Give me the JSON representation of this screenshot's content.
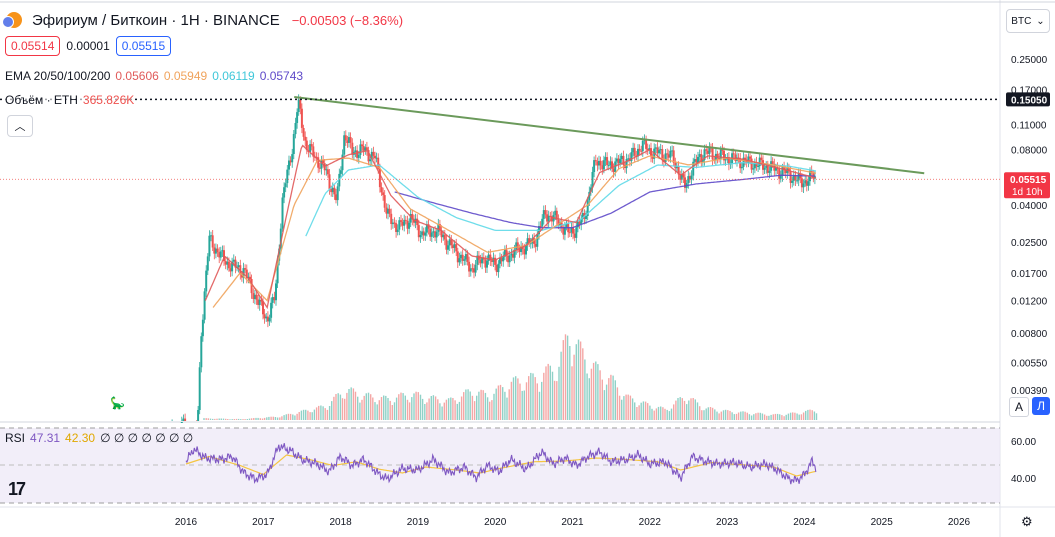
{
  "header": {
    "title": "Эфириум / Биткоин · 1H · BINANCE",
    "change": "−0.00503 (−8.36%)",
    "sell_price": "0.05514",
    "spread": "0.00001",
    "buy_price": "0.05515",
    "currency_label": "BTC"
  },
  "legend": {
    "ema_label": "EMA 20/50/100/200",
    "ema20": "0.05606",
    "ema50": "0.05949",
    "ema100": "0.06119",
    "ema200": "0.05743",
    "volume_label": "Объём · ETH",
    "volume_value": "365.826K",
    "rsi_label": "RSI",
    "rsi_value": "47.31",
    "rsi_ma": "42.30",
    "rsi_extra": "∅ ∅ ∅ ∅ ∅ ∅ ∅"
  },
  "colors": {
    "ema20": "#e05a5a",
    "ema50": "#f0a35c",
    "ema100": "#5fd9e8",
    "ema200": "#5e49c9",
    "trend": "#6b9a5b",
    "rsi_line": "#7e57c2",
    "rsi_ma": "#f5c542",
    "up": "#26a69a",
    "down": "#ef5350",
    "accent": "#2962ff"
  },
  "buttons": {
    "auto": "A",
    "log": "Л"
  },
  "chart_data": {
    "type": "candlestick",
    "scale": "log",
    "price_ticks": [
      "0.25000",
      "0.17000",
      "0.15050",
      "0.11000",
      "0.08000",
      "0.05515",
      "0.04000",
      "0.02500",
      "0.01700",
      "0.01200",
      "0.00800",
      "0.00550",
      "0.00390"
    ],
    "current_price": "0.05515",
    "current_countdown": "1d 10h",
    "dotted_level": "0.15050",
    "x_ticks": [
      "2016",
      "2017",
      "2018",
      "2019",
      "2020",
      "2021",
      "2022",
      "2023",
      "2024",
      "2025",
      "2026"
    ],
    "price_series": [
      [
        2015.82,
        0.0023
      ],
      [
        2015.95,
        0.0025
      ],
      [
        2016.1,
        0.0022
      ],
      [
        2016.15,
        0.0026
      ],
      [
        2016.2,
        0.0085
      ],
      [
        2016.3,
        0.026
      ],
      [
        2016.45,
        0.021
      ],
      [
        2016.55,
        0.019
      ],
      [
        2016.75,
        0.0175
      ],
      [
        2016.9,
        0.0125
      ],
      [
        2017.05,
        0.0095
      ],
      [
        2017.15,
        0.0125
      ],
      [
        2017.25,
        0.043
      ],
      [
        2017.38,
        0.085
      ],
      [
        2017.45,
        0.145
      ],
      [
        2017.55,
        0.085
      ],
      [
        2017.65,
        0.075
      ],
      [
        2017.8,
        0.062
      ],
      [
        2017.95,
        0.042
      ],
      [
        2018.05,
        0.098
      ],
      [
        2018.15,
        0.078
      ],
      [
        2018.3,
        0.08
      ],
      [
        2018.45,
        0.072
      ],
      [
        2018.6,
        0.035
      ],
      [
        2018.75,
        0.03
      ],
      [
        2018.9,
        0.034
      ],
      [
        2019.05,
        0.028
      ],
      [
        2019.25,
        0.029
      ],
      [
        2019.5,
        0.022
      ],
      [
        2019.7,
        0.018
      ],
      [
        2019.85,
        0.0205
      ],
      [
        2020.0,
        0.019
      ],
      [
        2020.15,
        0.021
      ],
      [
        2020.35,
        0.0235
      ],
      [
        2020.5,
        0.025
      ],
      [
        2020.65,
        0.036
      ],
      [
        2020.8,
        0.033
      ],
      [
        2020.95,
        0.028
      ],
      [
        2021.05,
        0.03
      ],
      [
        2021.15,
        0.034
      ],
      [
        2021.3,
        0.07
      ],
      [
        2021.45,
        0.066
      ],
      [
        2021.6,
        0.068
      ],
      [
        2021.75,
        0.072
      ],
      [
        2021.9,
        0.085
      ],
      [
        2022.0,
        0.079
      ],
      [
        2022.15,
        0.076
      ],
      [
        2022.3,
        0.073
      ],
      [
        2022.45,
        0.05
      ],
      [
        2022.55,
        0.064
      ],
      [
        2022.7,
        0.078
      ],
      [
        2022.85,
        0.075
      ],
      [
        2023.0,
        0.072
      ],
      [
        2023.15,
        0.07
      ],
      [
        2023.3,
        0.068
      ],
      [
        2023.5,
        0.065
      ],
      [
        2023.65,
        0.062
      ],
      [
        2023.8,
        0.059
      ],
      [
        2023.95,
        0.053
      ],
      [
        2024.05,
        0.055
      ],
      [
        2024.12,
        0.0575
      ],
      [
        2024.15,
        0.0552
      ]
    ],
    "ema20": [
      [
        2016.25,
        0.012
      ],
      [
        2016.5,
        0.021
      ],
      [
        2016.8,
        0.016
      ],
      [
        2017.05,
        0.011
      ],
      [
        2017.3,
        0.035
      ],
      [
        2017.5,
        0.085
      ],
      [
        2017.8,
        0.065
      ],
      [
        2018.1,
        0.075
      ],
      [
        2018.35,
        0.079
      ],
      [
        2018.65,
        0.045
      ],
      [
        2018.95,
        0.033
      ],
      [
        2019.3,
        0.029
      ],
      [
        2019.7,
        0.021
      ],
      [
        2020.0,
        0.02
      ],
      [
        2020.4,
        0.024
      ],
      [
        2020.75,
        0.034
      ],
      [
        2021.05,
        0.032
      ],
      [
        2021.35,
        0.06
      ],
      [
        2021.7,
        0.069
      ],
      [
        2022.0,
        0.08
      ],
      [
        2022.4,
        0.058
      ],
      [
        2022.75,
        0.074
      ],
      [
        2023.2,
        0.071
      ],
      [
        2023.7,
        0.063
      ],
      [
        2024.15,
        0.056
      ]
    ],
    "ema50": [
      [
        2016.35,
        0.011
      ],
      [
        2016.7,
        0.017
      ],
      [
        2017.05,
        0.012
      ],
      [
        2017.4,
        0.04
      ],
      [
        2017.7,
        0.07
      ],
      [
        2018.1,
        0.072
      ],
      [
        2018.5,
        0.064
      ],
      [
        2018.9,
        0.038
      ],
      [
        2019.4,
        0.029
      ],
      [
        2019.9,
        0.022
      ],
      [
        2020.4,
        0.024
      ],
      [
        2020.85,
        0.032
      ],
      [
        2021.2,
        0.04
      ],
      [
        2021.6,
        0.063
      ],
      [
        2022.0,
        0.074
      ],
      [
        2022.5,
        0.066
      ],
      [
        2023.0,
        0.072
      ],
      [
        2023.6,
        0.066
      ],
      [
        2024.15,
        0.0595
      ]
    ],
    "ema100": [
      [
        2017.55,
        0.027
      ],
      [
        2017.8,
        0.046
      ],
      [
        2018.1,
        0.062
      ],
      [
        2018.5,
        0.066
      ],
      [
        2019.0,
        0.044
      ],
      [
        2019.5,
        0.034
      ],
      [
        2020.0,
        0.029
      ],
      [
        2020.6,
        0.029
      ],
      [
        2021.1,
        0.033
      ],
      [
        2021.6,
        0.051
      ],
      [
        2022.1,
        0.066
      ],
      [
        2022.6,
        0.064
      ],
      [
        2023.2,
        0.068
      ],
      [
        2023.8,
        0.065
      ],
      [
        2024.15,
        0.0612
      ]
    ],
    "ema200": [
      [
        2018.7,
        0.047
      ],
      [
        2019.2,
        0.041
      ],
      [
        2019.7,
        0.036
      ],
      [
        2020.2,
        0.032
      ],
      [
        2020.6,
        0.03
      ],
      [
        2021.0,
        0.03
      ],
      [
        2021.5,
        0.036
      ],
      [
        2022.0,
        0.047
      ],
      [
        2022.6,
        0.052
      ],
      [
        2023.2,
        0.055
      ],
      [
        2023.7,
        0.058
      ],
      [
        2024.15,
        0.0574
      ]
    ],
    "trendline": [
      [
        2017.4,
        0.155
      ],
      [
        2025.55,
        0.0595
      ]
    ],
    "volume_series": [
      [
        2016.2,
        2
      ],
      [
        2016.7,
        1
      ],
      [
        2017.2,
        4
      ],
      [
        2017.45,
        9
      ],
      [
        2017.8,
        16
      ],
      [
        2018.05,
        35
      ],
      [
        2018.3,
        28
      ],
      [
        2018.6,
        24
      ],
      [
        2018.9,
        30
      ],
      [
        2019.1,
        26
      ],
      [
        2019.4,
        22
      ],
      [
        2019.7,
        34
      ],
      [
        2019.9,
        28
      ],
      [
        2020.2,
        43
      ],
      [
        2020.5,
        48
      ],
      [
        2020.8,
        62
      ],
      [
        2020.95,
        100
      ],
      [
        2021.1,
        78
      ],
      [
        2021.3,
        58
      ],
      [
        2021.5,
        46
      ],
      [
        2021.7,
        26
      ],
      [
        2021.95,
        18
      ],
      [
        2022.2,
        12
      ],
      [
        2022.45,
        28
      ],
      [
        2022.7,
        14
      ],
      [
        2023.0,
        10
      ],
      [
        2023.3,
        8
      ],
      [
        2023.6,
        6
      ],
      [
        2023.9,
        8
      ],
      [
        2024.15,
        12
      ]
    ],
    "rsi_ticks": [
      "60.00",
      "40.00"
    ],
    "rsi_band": [
      30,
      70
    ],
    "rsi_series": [
      [
        2016.0,
        55
      ],
      [
        2016.1,
        72
      ],
      [
        2016.25,
        60
      ],
      [
        2016.45,
        58
      ],
      [
        2016.6,
        62
      ],
      [
        2016.75,
        40
      ],
      [
        2016.9,
        32
      ],
      [
        2017.05,
        38
      ],
      [
        2017.2,
        76
      ],
      [
        2017.35,
        70
      ],
      [
        2017.5,
        58
      ],
      [
        2017.7,
        52
      ],
      [
        2017.85,
        42
      ],
      [
        2018.0,
        62
      ],
      [
        2018.15,
        50
      ],
      [
        2018.3,
        58
      ],
      [
        2018.5,
        38
      ],
      [
        2018.6,
        32
      ],
      [
        2018.8,
        46
      ],
      [
        2019.0,
        44
      ],
      [
        2019.2,
        58
      ],
      [
        2019.4,
        40
      ],
      [
        2019.6,
        48
      ],
      [
        2019.75,
        34
      ],
      [
        2019.9,
        50
      ],
      [
        2020.05,
        42
      ],
      [
        2020.2,
        58
      ],
      [
        2020.4,
        45
      ],
      [
        2020.6,
        68
      ],
      [
        2020.75,
        52
      ],
      [
        2020.9,
        60
      ],
      [
        2021.05,
        50
      ],
      [
        2021.2,
        62
      ],
      [
        2021.35,
        68
      ],
      [
        2021.5,
        55
      ],
      [
        2021.7,
        58
      ],
      [
        2021.85,
        64
      ],
      [
        2022.0,
        52
      ],
      [
        2022.2,
        55
      ],
      [
        2022.4,
        34
      ],
      [
        2022.55,
        62
      ],
      [
        2022.7,
        56
      ],
      [
        2022.9,
        52
      ],
      [
        2023.1,
        54
      ],
      [
        2023.3,
        48
      ],
      [
        2023.5,
        52
      ],
      [
        2023.65,
        44
      ],
      [
        2023.8,
        32
      ],
      [
        2023.9,
        30
      ],
      [
        2024.0,
        38
      ],
      [
        2024.1,
        56
      ],
      [
        2024.15,
        47.31
      ]
    ],
    "rsi_ma_series": [
      [
        2016.0,
        52
      ],
      [
        2016.3,
        62
      ],
      [
        2016.7,
        50
      ],
      [
        2017.0,
        38
      ],
      [
        2017.3,
        64
      ],
      [
        2017.6,
        58
      ],
      [
        2017.9,
        50
      ],
      [
        2018.2,
        55
      ],
      [
        2018.5,
        45
      ],
      [
        2018.8,
        40
      ],
      [
        2019.1,
        48
      ],
      [
        2019.5,
        44
      ],
      [
        2019.8,
        40
      ],
      [
        2020.1,
        47
      ],
      [
        2020.5,
        55
      ],
      [
        2020.9,
        56
      ],
      [
        2021.3,
        60
      ],
      [
        2021.7,
        58
      ],
      [
        2022.1,
        55
      ],
      [
        2022.4,
        44
      ],
      [
        2022.8,
        54
      ],
      [
        2023.2,
        51
      ],
      [
        2023.6,
        48
      ],
      [
        2023.9,
        36
      ],
      [
        2024.15,
        42.3
      ]
    ]
  }
}
